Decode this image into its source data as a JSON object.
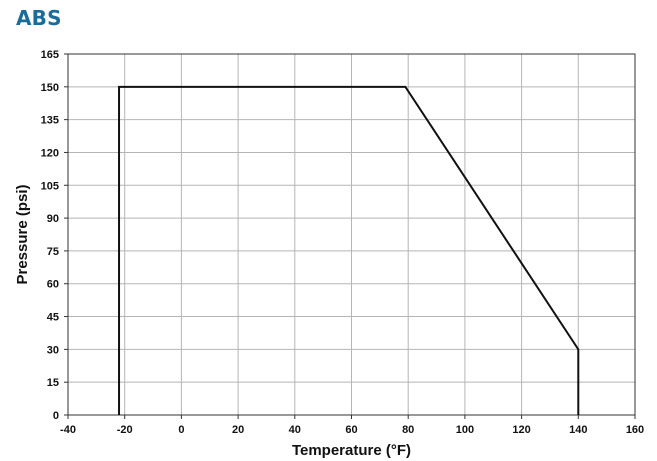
{
  "title": "ABS",
  "colors": {
    "title": "#1a6c9a",
    "line": "#111111",
    "grid": "#b5b5b5",
    "axis": "#333333"
  },
  "chart_data": {
    "type": "line",
    "title": "ABS",
    "xlabel": "Temperature (°F)",
    "ylabel": "Pressure (psi)",
    "xlim": [
      -40,
      160
    ],
    "ylim": [
      0,
      165
    ],
    "xticks": [
      -40,
      -20,
      0,
      20,
      40,
      60,
      80,
      100,
      120,
      140,
      160
    ],
    "yticks": [
      0,
      15,
      30,
      45,
      60,
      75,
      90,
      105,
      120,
      135,
      150,
      165
    ],
    "grid": true,
    "series": [
      {
        "x": [
          -22,
          -22,
          79,
          140,
          140
        ],
        "y": [
          0,
          150,
          150,
          30,
          0
        ]
      }
    ]
  }
}
